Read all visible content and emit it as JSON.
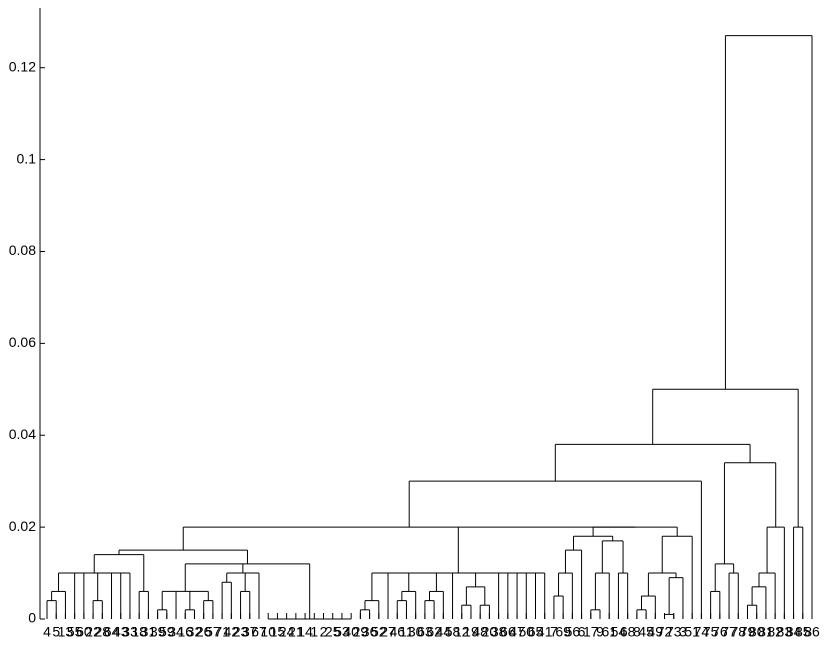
{
  "chart_data": {
    "type": "dendrogram",
    "ylim": [
      0,
      0.133
    ],
    "yticks": [
      0,
      0.02,
      0.04,
      0.06,
      0.08,
      0.1,
      0.12
    ],
    "color": "#000000",
    "tree": {
      "height": 0.127,
      "children": [
        {
          "height": 0.05,
          "children": [
            {
              "height": 0.038,
              "children": [
                {
                  "height": 0.03,
                  "children": [
                    {
                      "height": 0.02,
                      "children": [
                        {
                          "height": 0.015,
                          "children": [
                            {
                              "height": 0.014,
                              "children": [
                                {
                                  "height": 0.01,
                                  "children": [
                                    {
                                      "height": 0.006,
                                      "children": [
                                        {
                                          "height": 0.004,
                                          "children": [
                                            "4",
                                            "5"
                                          ]
                                        },
                                        "13"
                                      ]
                                    },
                                    "55",
                                    "60",
                                    {
                                      "height": 0.004,
                                      "children": [
                                        "22",
                                        "28"
                                      ]
                                    },
                                    "64",
                                    "43",
                                    "33"
                                  ]
                                },
                                {
                                  "height": 0.006,
                                  "children": [
                                    "18",
                                    "31"
                                  ]
                                }
                              ]
                            },
                            {
                              "height": 0.012,
                              "children": [
                                {
                                  "height": 0.006,
                                  "children": [
                                    {
                                      "height": 0.002,
                                      "children": [
                                        "39",
                                        "59"
                                      ]
                                    },
                                    "34",
                                    {
                                      "height": 0.002,
                                      "children": [
                                        "16",
                                        "32"
                                      ]
                                    },
                                    {
                                      "height": 0.004,
                                      "children": [
                                        "26",
                                        "57"
                                      ]
                                    }
                                  ]
                                },
                                {
                                  "height": 0.01,
                                  "children": [
                                    {
                                      "height": 0.008,
                                      "children": [
                                        "71",
                                        "42"
                                      ]
                                    },
                                    {
                                      "height": 0.006,
                                      "children": [
                                        "23",
                                        "37"
                                      ]
                                    },
                                    "67"
                                  ]
                                },
                                {
                                  "height": 0,
                                  "children": [
                                    "10",
                                    "15",
                                    "24",
                                    "21",
                                    "14",
                                    "1",
                                    "2",
                                    "25",
                                    "53",
                                    "40"
                                  ]
                                }
                              ]
                            }
                          ]
                        },
                        {
                          "height": 0.01,
                          "children": [
                            {
                              "height": 0.004,
                              "children": [
                                {
                                  "height": 0.002,
                                  "children": [
                                    "29",
                                    "36"
                                  ]
                                },
                                "52"
                              ]
                            },
                            "27",
                            {
                              "height": 0.006,
                              "children": [
                                {
                                  "height": 0.004,
                                  "children": [
                                    "46",
                                    "11"
                                  ]
                                },
                                "30"
                              ]
                            },
                            {
                              "height": 0.006,
                              "children": [
                                {
                                  "height": 0.004,
                                  "children": [
                                    "63",
                                    "62"
                                  ]
                                },
                                "44"
                              ]
                            },
                            "58",
                            {
                              "height": 0.007,
                              "children": [
                                {
                                  "height": 0.003,
                                  "children": [
                                    "12",
                                    "19"
                                  ]
                                },
                                {
                                  "height": 0.003,
                                  "children": [
                                    "48",
                                    "20"
                                  ]
                                }
                              ]
                            },
                            "38",
                            "66",
                            "47",
                            "50",
                            "65",
                            "41"
                          ]
                        },
                        {
                          "height": 0.02,
                          "children": [
                            {
                              "height": 0.018,
                              "children": [
                                {
                                  "height": 0.015,
                                  "children": [
                                    {
                                      "height": 0.01,
                                      "children": [
                                        {
                                          "height": 0.005,
                                          "children": [
                                            "7",
                                            "69"
                                          ]
                                        },
                                        "56"
                                      ]
                                    },
                                    "6"
                                  ]
                                },
                                {
                                  "height": 0.017,
                                  "children": [
                                    {
                                      "height": 0.01,
                                      "children": [
                                        {
                                          "height": 0.002,
                                          "children": [
                                            "17",
                                            "9"
                                          ]
                                        },
                                        "61"
                                      ]
                                    },
                                    {
                                      "height": 0.01,
                                      "children": [
                                        "54",
                                        "68"
                                      ]
                                    }
                                  ]
                                }
                              ]
                            },
                            {
                              "height": 0.018,
                              "children": [
                                {
                                  "height": 0.01,
                                  "children": [
                                    {
                                      "height": 0.005,
                                      "children": [
                                        {
                                          "height": 0.002,
                                          "children": [
                                            "8",
                                            "45"
                                          ]
                                        },
                                        "49"
                                      ]
                                    },
                                    {
                                      "height": 0.009,
                                      "children": [
                                        {
                                          "height": 0.001,
                                          "children": [
                                            "72",
                                            "73"
                                          ]
                                        },
                                        "3"
                                      ]
                                    }
                                  ]
                                },
                                "51"
                              ]
                            }
                          ]
                        }
                      ]
                    },
                    "74"
                  ]
                },
                {
                  "height": 0.034,
                  "children": [
                    {
                      "height": 0.012,
                      "children": [
                        {
                          "height": 0.006,
                          "children": [
                            "75",
                            "76"
                          ]
                        },
                        {
                          "height": 0.01,
                          "children": [
                            "77",
                            "78"
                          ]
                        }
                      ]
                    },
                    {
                      "height": 0.02,
                      "children": [
                        {
                          "height": 0.01,
                          "children": [
                            {
                              "height": 0.007,
                              "children": [
                                {
                                  "height": 0.003,
                                  "children": [
                                    "79",
                                    "80"
                                  ]
                                },
                                "81"
                              ]
                            },
                            "82"
                          ]
                        },
                        "83"
                      ]
                    }
                  ]
                }
              ]
            },
            {
              "height": 0.02,
              "children": [
                "84",
                "85"
              ]
            }
          ]
        },
        "86"
      ]
    }
  }
}
